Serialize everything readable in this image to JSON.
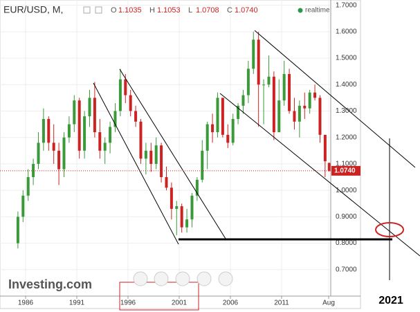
{
  "chart_data": {
    "type": "candlestick",
    "title": "EUR/USD, M,",
    "ohlc": {
      "names": [
        "O",
        "H",
        "L",
        "C"
      ],
      "values": [
        1.1035,
        1.1053,
        1.0708,
        1.074
      ],
      "value_labels": [
        "1.1035",
        "1.1053",
        "1.0708",
        "1.0740"
      ]
    },
    "realtime": "realtime",
    "logo": "Investing.com",
    "annotation": "2021",
    "up_color": "#3a9a3a",
    "down_color": "#cc2222",
    "x": [
      1985.25,
      1985.75,
      1986.25,
      1986.75,
      1987.25,
      1987.75,
      1988.25,
      1988.75,
      1989.25,
      1989.75,
      1990.25,
      1990.75,
      1991.25,
      1991.75,
      1992.25,
      1992.75,
      1993.25,
      1993.75,
      1994.25,
      1994.75,
      1995.25,
      1995.75,
      1996.25,
      1996.75,
      1997.25,
      1997.75,
      1998.25,
      1998.75,
      1999.25,
      1999.75,
      2000.25,
      2000.75,
      2001.25,
      2001.75,
      2002.25,
      2002.75,
      2003.25,
      2003.75,
      2004.25,
      2004.75,
      2005.25,
      2005.75,
      2006.25,
      2006.75,
      2007.25,
      2007.75,
      2008.25,
      2008.75,
      2009.25,
      2009.75,
      2010.25,
      2010.75,
      2011.25,
      2011.75,
      2012.25,
      2012.75,
      2013.25,
      2013.75,
      2014.25,
      2014.75,
      2015.25,
      2015.65
    ],
    "open": [
      0.8,
      0.9,
      0.98,
      1.05,
      1.1,
      1.18,
      1.27,
      1.18,
      1.15,
      1.08,
      1.2,
      1.25,
      1.34,
      1.15,
      1.28,
      1.35,
      1.22,
      1.15,
      1.18,
      1.24,
      1.3,
      1.42,
      1.36,
      1.3,
      1.26,
      1.12,
      1.15,
      1.1,
      1.17,
      1.05,
      1.01,
      0.93,
      0.94,
      0.86,
      0.89,
      0.98,
      1.04,
      1.15,
      1.25,
      1.22,
      1.35,
      1.21,
      1.18,
      1.27,
      1.32,
      1.36,
      1.46,
      1.57,
      1.4,
      1.4,
      1.43,
      1.22,
      1.34,
      1.44,
      1.3,
      1.26,
      1.32,
      1.31,
      1.37,
      1.35,
      1.21,
      1.1035
    ],
    "high": [
      0.92,
      1.0,
      1.08,
      1.12,
      1.22,
      1.31,
      1.28,
      1.25,
      1.18,
      1.22,
      1.28,
      1.36,
      1.35,
      1.3,
      1.38,
      1.41,
      1.27,
      1.2,
      1.26,
      1.33,
      1.46,
      1.44,
      1.38,
      1.32,
      1.27,
      1.18,
      1.18,
      1.2,
      1.18,
      1.09,
      1.03,
      0.96,
      0.95,
      0.93,
      0.99,
      1.05,
      1.19,
      1.26,
      1.29,
      1.37,
      1.35,
      1.25,
      1.29,
      1.33,
      1.38,
      1.49,
      1.6,
      1.6,
      1.42,
      1.51,
      1.45,
      1.42,
      1.49,
      1.46,
      1.35,
      1.34,
      1.37,
      1.38,
      1.4,
      1.36,
      1.21,
      1.1053
    ],
    "low": [
      0.78,
      0.88,
      0.96,
      1.02,
      1.08,
      1.15,
      1.15,
      1.1,
      1.02,
      1.05,
      1.18,
      1.22,
      1.12,
      1.12,
      1.24,
      1.2,
      1.12,
      1.1,
      1.14,
      1.22,
      1.28,
      1.33,
      1.28,
      1.24,
      1.1,
      1.06,
      1.07,
      1.08,
      1.03,
      1.0,
      0.89,
      0.83,
      0.84,
      0.84,
      0.86,
      0.96,
      1.03,
      1.08,
      1.18,
      1.2,
      1.2,
      1.16,
      1.17,
      1.25,
      1.29,
      1.33,
      1.44,
      1.24,
      1.25,
      1.39,
      1.19,
      1.22,
      1.32,
      1.29,
      1.23,
      1.2,
      1.27,
      1.29,
      1.34,
      1.18,
      1.05,
      1.0708
    ],
    "close": [
      0.9,
      0.98,
      1.05,
      1.1,
      1.18,
      1.27,
      1.18,
      1.15,
      1.08,
      1.2,
      1.25,
      1.34,
      1.15,
      1.28,
      1.35,
      1.22,
      1.15,
      1.18,
      1.24,
      1.3,
      1.42,
      1.36,
      1.3,
      1.26,
      1.12,
      1.15,
      1.1,
      1.17,
      1.05,
      1.01,
      0.93,
      0.94,
      0.86,
      0.89,
      0.98,
      1.04,
      1.15,
      1.25,
      1.22,
      1.35,
      1.21,
      1.18,
      1.27,
      1.32,
      1.36,
      1.46,
      1.57,
      1.4,
      1.4,
      1.43,
      1.22,
      1.34,
      1.44,
      1.3,
      1.26,
      1.32,
      1.31,
      1.37,
      1.35,
      1.21,
      1.11,
      1.074
    ],
    "xlim": [
      1983.5,
      2015.8
    ],
    "ylim": [
      0.6,
      1.72
    ],
    "xticks": [
      1986,
      1991,
      1996,
      2001,
      2006,
      2011,
      {
        "value": 2015.6,
        "label": "Aug"
      }
    ],
    "yticks": [
      {
        "value": 0.7,
        "label": "0.7000"
      },
      {
        "value": 0.8,
        "label": "0.8000"
      },
      {
        "value": 0.9,
        "label": "0.9000"
      },
      {
        "value": 1.0,
        "label": "1.0000"
      },
      {
        "value": 1.1,
        "label": "1.1000"
      },
      {
        "value": 1.2,
        "label": "1.2000"
      },
      {
        "value": 1.3,
        "label": "1.3000"
      },
      {
        "value": 1.4,
        "label": "1.4000"
      },
      {
        "value": 1.5,
        "label": "1.5000"
      },
      {
        "value": 1.6,
        "label": "1.6000"
      },
      {
        "value": 1.7,
        "label": "1.7000"
      }
    ],
    "grid": true
  }
}
